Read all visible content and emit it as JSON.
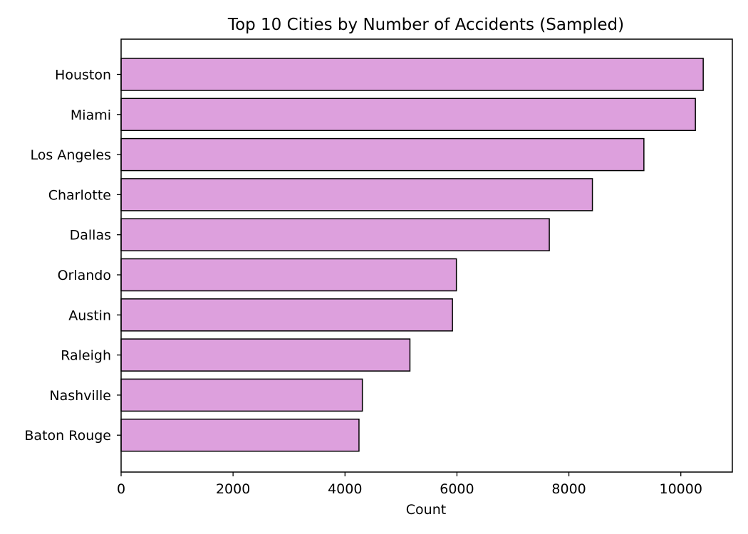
{
  "chart_data": {
    "type": "bar",
    "orientation": "horizontal",
    "title": "Top 10 Cities by Number of Accidents (Sampled)",
    "xlabel": "Count",
    "ylabel": "",
    "categories": [
      "Houston",
      "Miami",
      "Los Angeles",
      "Charlotte",
      "Dallas",
      "Orlando",
      "Austin",
      "Raleigh",
      "Nashville",
      "Baton Rouge"
    ],
    "values": [
      10400,
      10260,
      9340,
      8420,
      7650,
      5990,
      5920,
      5160,
      4310,
      4250
    ],
    "xlim": [
      0,
      10920
    ],
    "xticks": [
      0,
      2000,
      4000,
      6000,
      8000,
      10000
    ],
    "grid": false,
    "bar_color": "#dda0dd",
    "edge_color": "#000000"
  }
}
